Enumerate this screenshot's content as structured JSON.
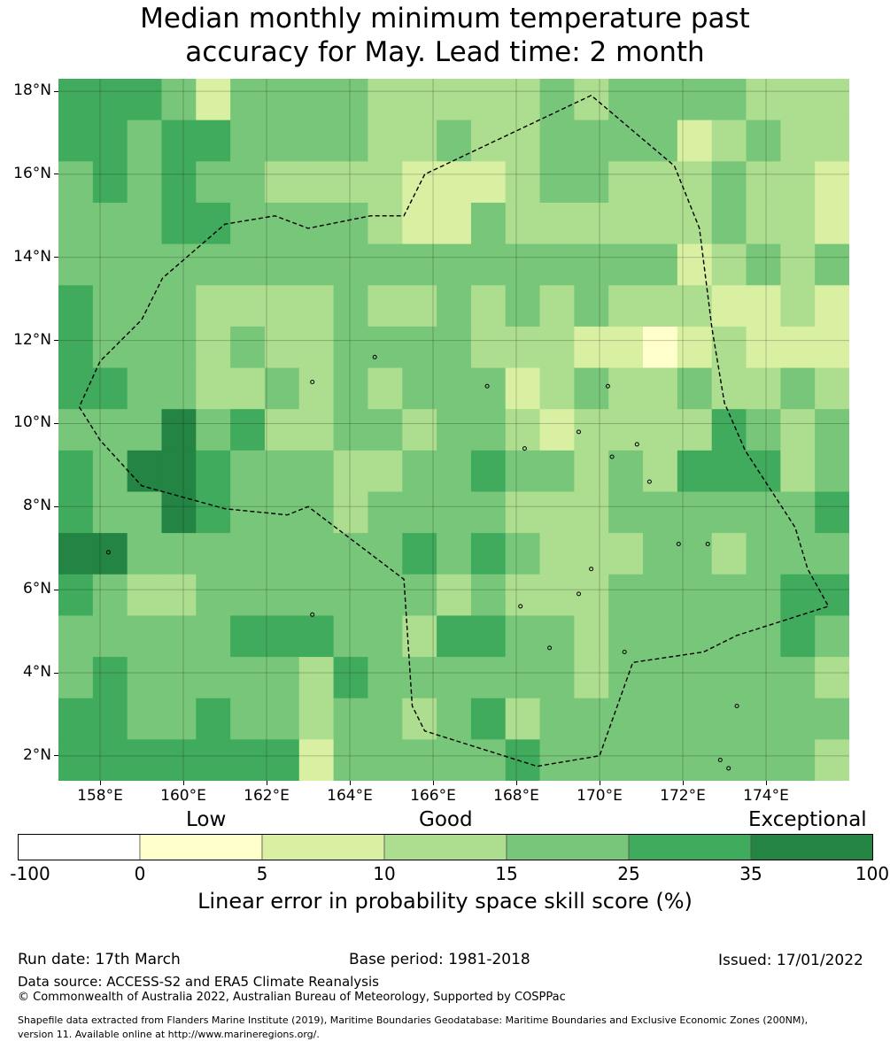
{
  "title": {
    "line1": "Median monthly minimum temperature past",
    "line2": "accuracy for May. Lead time: 2 month"
  },
  "map": {
    "lon_range": [
      157,
      176
    ],
    "lat_range": [
      1.4,
      18.3
    ],
    "lat_ticks": [
      "18°N",
      "16°N",
      "14°N",
      "12°N",
      "10°N",
      "8°N",
      "6°N",
      "4°N",
      "2°N"
    ],
    "lat_values": [
      18,
      16,
      14,
      12,
      10,
      8,
      6,
      4,
      2
    ],
    "lon_ticks": [
      "158°E",
      "160°E",
      "162°E",
      "164°E",
      "166°E",
      "168°E",
      "170°E",
      "172°E",
      "174°E"
    ],
    "lon_values": [
      158,
      160,
      162,
      164,
      166,
      168,
      170,
      172,
      174
    ],
    "grid_cols": 23,
    "grid_rows": 17,
    "palette": [
      "#ffffff",
      "#ffffcc",
      "#d9f0a3",
      "#addd8e",
      "#78c679",
      "#41ab5d",
      "#238443"
    ],
    "skill_category_grid": [
      "55542444433333434444333",
      "55455444433433444423433",
      "45454433332223443334332",
      "44455444432243333334332",
      "44444444444444444423434",
      "54443333433434343332232",
      "54443433444433322123222",
      "55443343434442343343343",
      "44464533443443233335434",
      "54665444334454434355534",
      "54465444344443334444445",
      "66444444445454333443444",
      "54334444444343334444455",
      "44444555443554434444454",
      "45444443544444434444443",
      "55445443443453444444444",
      "55555552444445444444443"
    ],
    "eez_boundary": [
      [
        157.5,
        10.4
      ],
      [
        158,
        9.6
      ],
      [
        159,
        8.5
      ],
      [
        161,
        7.95
      ],
      [
        162.5,
        7.8
      ],
      [
        163,
        8
      ],
      [
        165.3,
        6.25
      ],
      [
        165.5,
        3.2
      ],
      [
        165.8,
        2.6
      ],
      [
        168.5,
        1.75
      ],
      [
        170,
        2
      ],
      [
        170.8,
        4.25
      ],
      [
        172.5,
        4.5
      ],
      [
        173.3,
        4.9
      ],
      [
        175.5,
        5.6
      ],
      [
        175,
        6.5
      ],
      [
        174.7,
        7.5
      ],
      [
        173.5,
        9.35
      ],
      [
        173,
        10.5
      ],
      [
        172.7,
        12.3
      ],
      [
        172.4,
        14.7
      ],
      [
        171.8,
        16.2
      ],
      [
        169.8,
        17.9
      ],
      [
        165.8,
        16
      ],
      [
        165.3,
        15
      ],
      [
        164.5,
        15
      ],
      [
        163,
        14.7
      ],
      [
        162.2,
        15
      ],
      [
        161,
        14.8
      ],
      [
        159.5,
        13.5
      ],
      [
        159,
        12.5
      ],
      [
        158,
        11.5
      ],
      [
        157.5,
        10.4
      ]
    ]
  },
  "colorbar": {
    "headers": [
      "Low",
      "Good",
      "Exceptional"
    ],
    "tick_labels": [
      "-100",
      "0",
      "5",
      "10",
      "15",
      "25",
      "35",
      "100"
    ],
    "colors": [
      "#ffffff",
      "#ffffcc",
      "#d9f0a3",
      "#addd8e",
      "#78c679",
      "#41ab5d",
      "#238443"
    ],
    "title": "Linear error in probability space skill score (%)"
  },
  "footer": {
    "run_date": "Run date: 17th March",
    "base_period": "Base period: 1981-2018",
    "issued": "Issued: 17/01/2022",
    "data_source": "Data source: ACCESS-S2 and ERA5 Climate Reanalysis",
    "copyright": "© Commonwealth of Australia 2022, Australian Bureau of Meteorology, Supported by COSPPac",
    "shapefile_line1": "Shapefile data extracted from Flanders Marine Institute (2019), Maritime Boundaries Geodatabase: Maritime Boundaries and Exclusive Economic Zones (200NM),",
    "shapefile_line2": "version 11. Available online at http://www.marineregions.org/."
  }
}
